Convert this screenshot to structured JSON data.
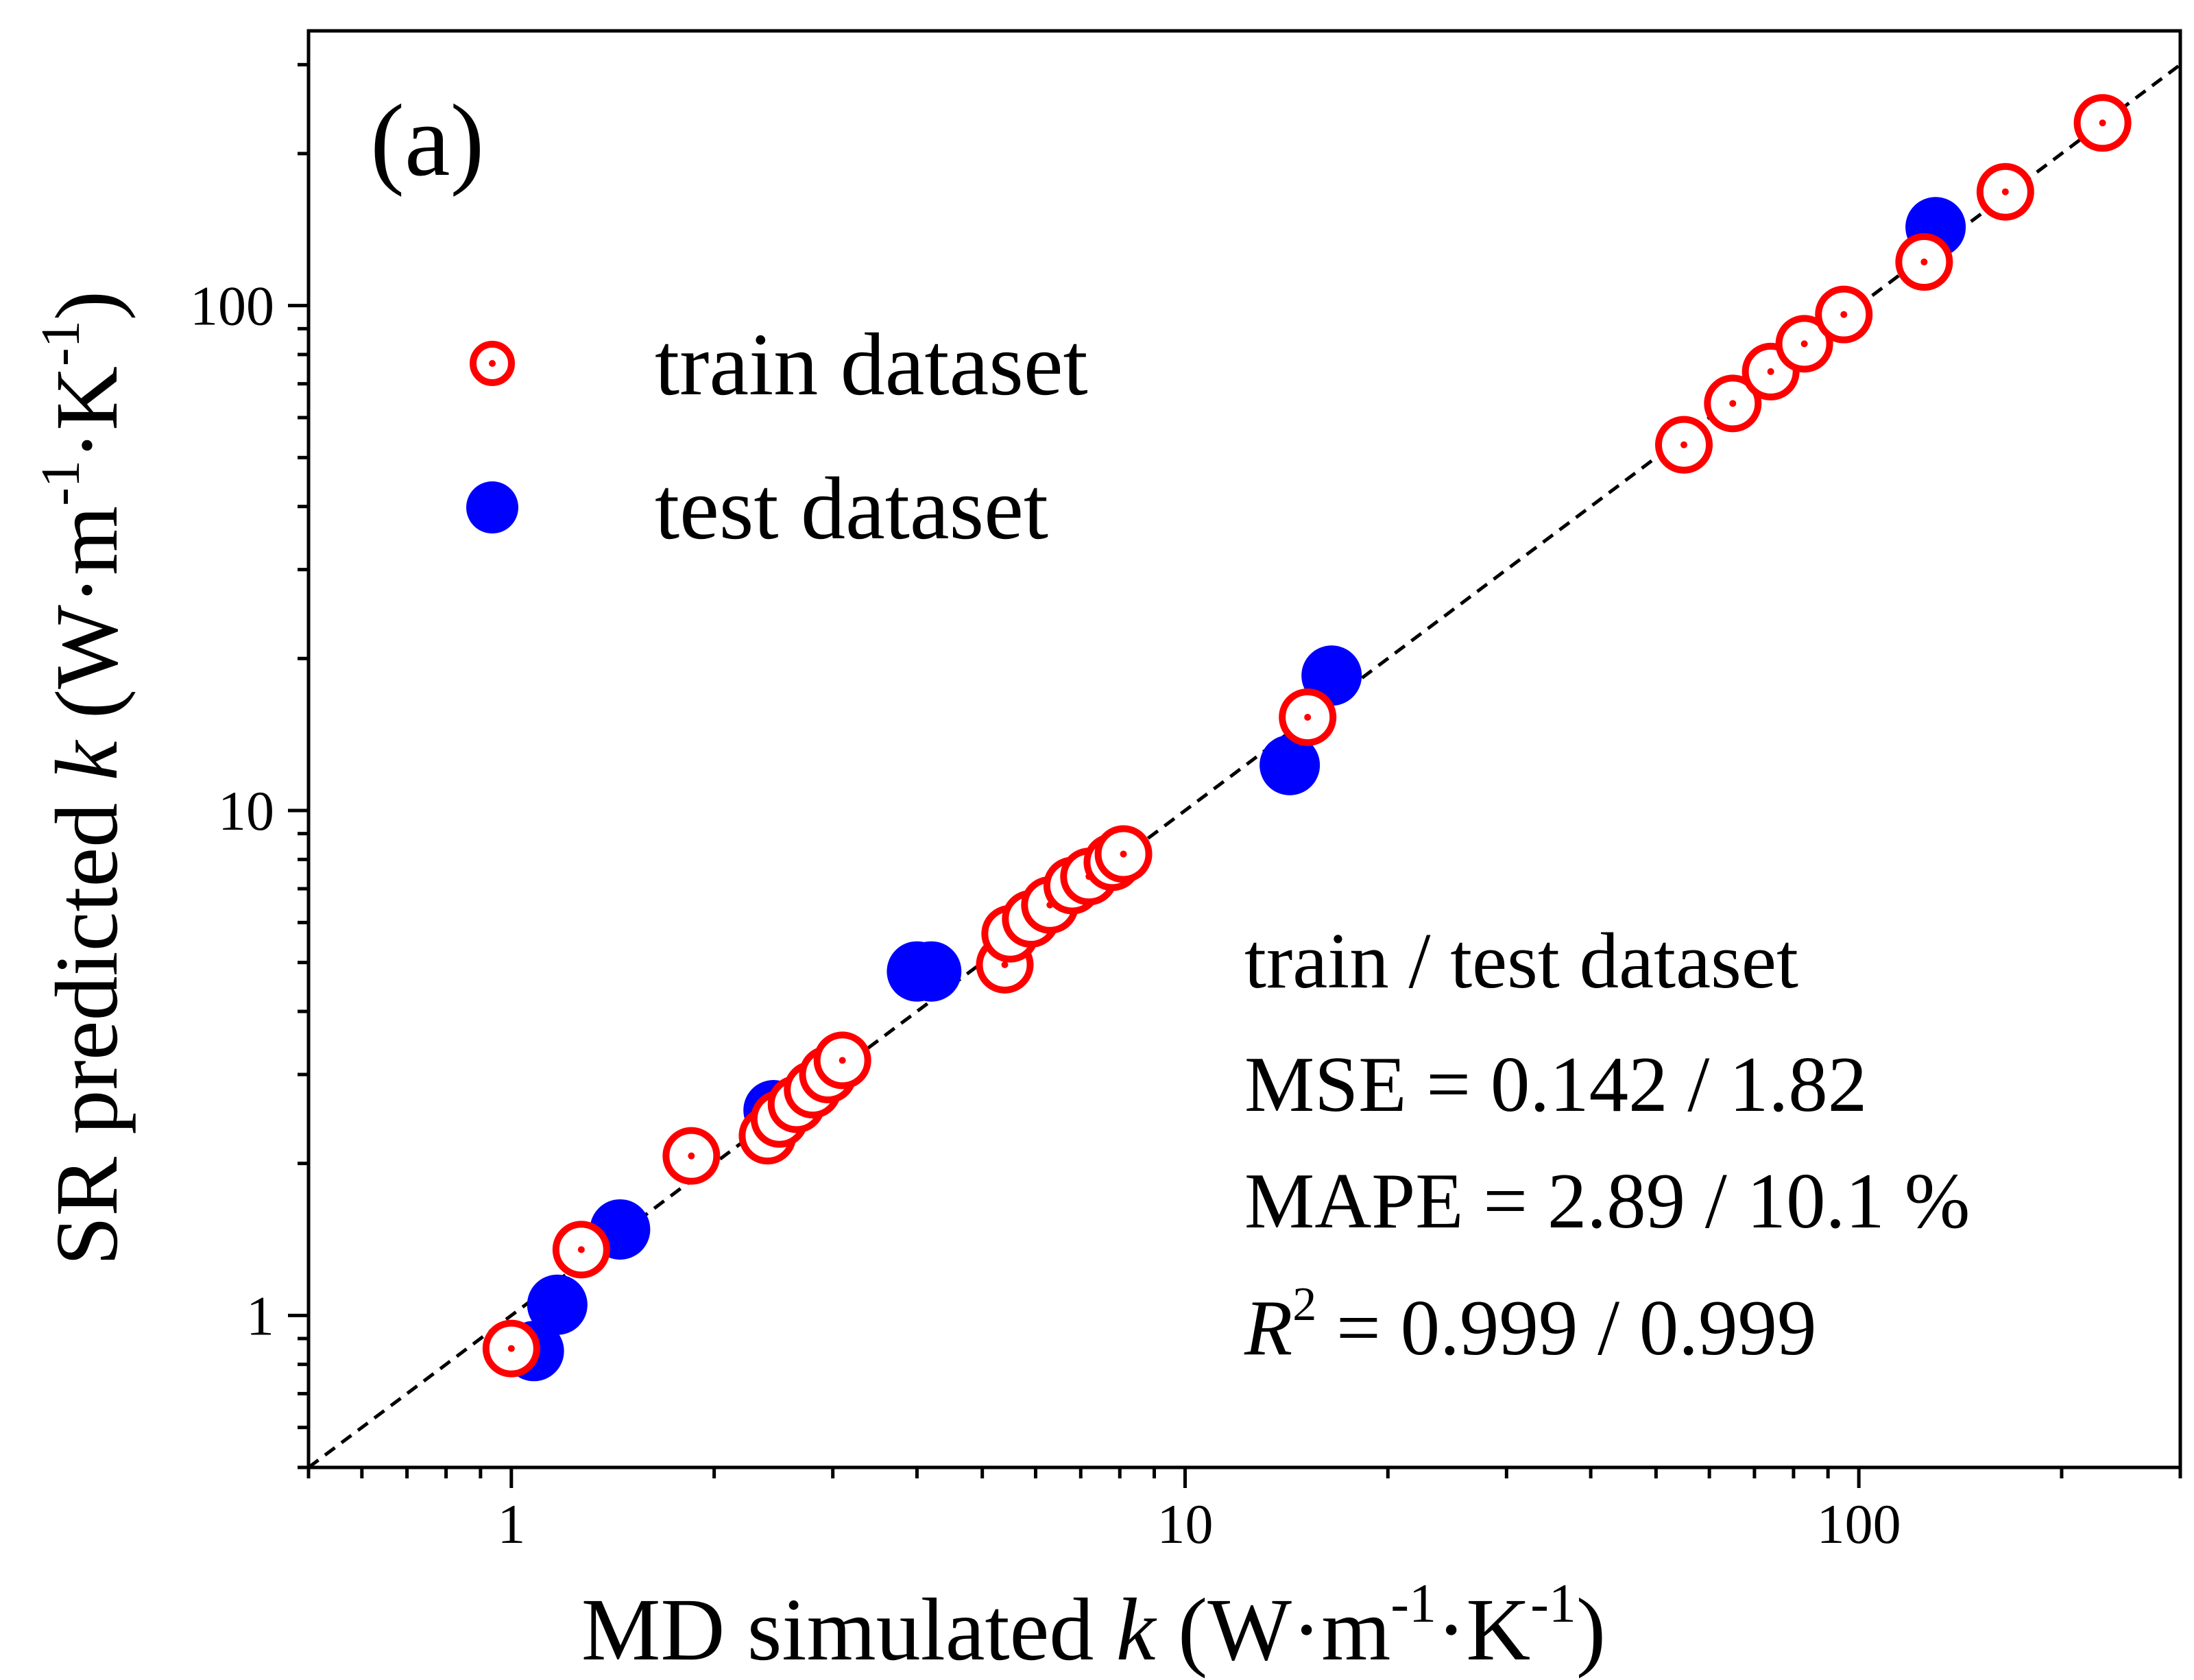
{
  "chart_data": {
    "type": "scatter",
    "panel_label": "(a)",
    "xlabel": {
      "prefix": "MD simulated ",
      "var": "k",
      "units": "(W·m-1·K-1)"
    },
    "ylabel": {
      "prefix": "SR predicted ",
      "var": "k",
      "units": "(W·m-1·K-1)"
    },
    "x_scale": "log",
    "y_scale": "log",
    "xlim": [
      0.5,
      300
    ],
    "ylim": [
      0.5,
      350
    ],
    "x_ticks": [
      {
        "value": 1,
        "label": "1"
      },
      {
        "value": 10,
        "label": "10"
      },
      {
        "value": 100,
        "label": "100"
      }
    ],
    "y_ticks": [
      {
        "value": 1,
        "label": "1"
      },
      {
        "value": 10,
        "label": "10"
      },
      {
        "value": 100,
        "label": "100"
      }
    ],
    "grid": false,
    "reference_line": {
      "style": "dashed",
      "color": "#000000",
      "meaning": "y = x"
    },
    "legend": {
      "position": "top-left",
      "items": [
        {
          "label": "train dataset",
          "marker": "open-circle-dot",
          "color": "#ff0000"
        },
        {
          "label": "test dataset",
          "marker": "filled-circle",
          "color": "#0000ff"
        }
      ]
    },
    "series": [
      {
        "name": "test dataset",
        "color": "#0000ff",
        "marker": "filled-circle",
        "points": [
          {
            "x": 1.08,
            "y": 0.85
          },
          {
            "x": 1.17,
            "y": 1.05
          },
          {
            "x": 1.45,
            "y": 1.48
          },
          {
            "x": 2.45,
            "y": 2.55
          },
          {
            "x": 4.0,
            "y": 4.8
          },
          {
            "x": 4.2,
            "y": 4.8
          },
          {
            "x": 14.3,
            "y": 12.3
          },
          {
            "x": 16.5,
            "y": 18.5
          },
          {
            "x": 130,
            "y": 143
          }
        ]
      },
      {
        "name": "train dataset",
        "color": "#ff0000",
        "marker": "open-circle-dot",
        "points": [
          {
            "x": 1.0,
            "y": 0.86
          },
          {
            "x": 1.27,
            "y": 1.35
          },
          {
            "x": 1.85,
            "y": 2.07
          },
          {
            "x": 2.4,
            "y": 2.27
          },
          {
            "x": 2.5,
            "y": 2.45
          },
          {
            "x": 2.65,
            "y": 2.62
          },
          {
            "x": 2.8,
            "y": 2.8
          },
          {
            "x": 2.95,
            "y": 3.0
          },
          {
            "x": 3.1,
            "y": 3.2
          },
          {
            "x": 5.4,
            "y": 4.95
          },
          {
            "x": 5.5,
            "y": 5.7
          },
          {
            "x": 5.9,
            "y": 6.1
          },
          {
            "x": 6.3,
            "y": 6.5
          },
          {
            "x": 6.8,
            "y": 7.1
          },
          {
            "x": 7.2,
            "y": 7.4
          },
          {
            "x": 7.8,
            "y": 7.9
          },
          {
            "x": 8.1,
            "y": 8.2
          },
          {
            "x": 15.2,
            "y": 15.3
          },
          {
            "x": 55,
            "y": 53
          },
          {
            "x": 65,
            "y": 64
          },
          {
            "x": 74,
            "y": 74
          },
          {
            "x": 83,
            "y": 84
          },
          {
            "x": 95,
            "y": 96
          },
          {
            "x": 125,
            "y": 122
          },
          {
            "x": 165,
            "y": 168
          },
          {
            "x": 230,
            "y": 230
          }
        ]
      }
    ],
    "stats": {
      "header": "train / test dataset",
      "mse": "MSE = 0.142 / 1.82",
      "mape": "MAPE = 2.89 / 10.1 %",
      "r2_symbol": "R",
      "r2_power": "2",
      "r2_value": " = 0.999 / 0.999"
    }
  }
}
